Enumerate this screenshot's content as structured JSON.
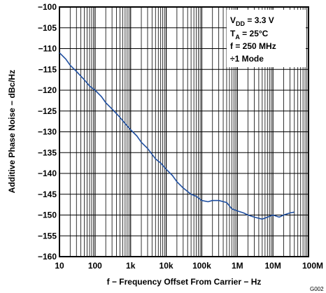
{
  "chart_data": {
    "type": "line",
    "title": "",
    "xlabel": "f − Frequency Offset From Carrier − Hz",
    "ylabel": "Additive Phase Noise − dBc/Hz",
    "x_scale": "log",
    "xlim": [
      10,
      100000000
    ],
    "ylim": [
      -160,
      -100
    ],
    "x_ticks": [
      "10",
      "100",
      "1k",
      "10k",
      "100k",
      "1M",
      "10M",
      "100M"
    ],
    "y_ticks": [
      "−100",
      "−105",
      "−110",
      "−115",
      "−120",
      "−125",
      "−130",
      "−135",
      "−140",
      "−145",
      "−150",
      "−155",
      "−160"
    ],
    "grid": true,
    "legend_placement": "top-right",
    "conditions": [
      {
        "main": "V",
        "sub": "DD",
        "rest": " = 3.3 V"
      },
      {
        "main": "T",
        "sub": "A",
        "rest": " = 25°C"
      },
      {
        "main": "f = 250 MHz",
        "sub": "",
        "rest": ""
      },
      {
        "main": "÷1 Mode",
        "sub": "",
        "rest": ""
      }
    ],
    "figure_id": "G002",
    "series": [
      {
        "x": [
          10,
          15,
          20,
          30,
          50,
          70,
          100,
          150,
          200,
          300,
          500,
          700,
          1000,
          1500,
          2000,
          3000,
          5000,
          7000,
          10000,
          15000,
          20000,
          30000,
          50000,
          70000,
          100000,
          150000,
          200000,
          300000,
          500000,
          700000,
          1000000,
          1500000,
          2000000,
          3000000,
          5000000,
          7000000,
          10000000,
          15000000,
          20000000,
          30000000,
          40000000
        ],
        "y": [
          -111,
          -112.5,
          -114,
          -115.5,
          -117.5,
          -119,
          -120,
          -121.5,
          -123,
          -124.5,
          -126.5,
          -128,
          -129.5,
          -131,
          -132.5,
          -134,
          -136.5,
          -137.5,
          -139,
          -140.5,
          -142,
          -143.5,
          -145,
          -145.5,
          -146.5,
          -146.8,
          -146.5,
          -146.5,
          -147,
          -148.5,
          -149,
          -149.5,
          -150,
          -150.5,
          -151,
          -150.5,
          -150,
          -150.5,
          -150,
          -149.5,
          -149.3
        ]
      }
    ]
  }
}
